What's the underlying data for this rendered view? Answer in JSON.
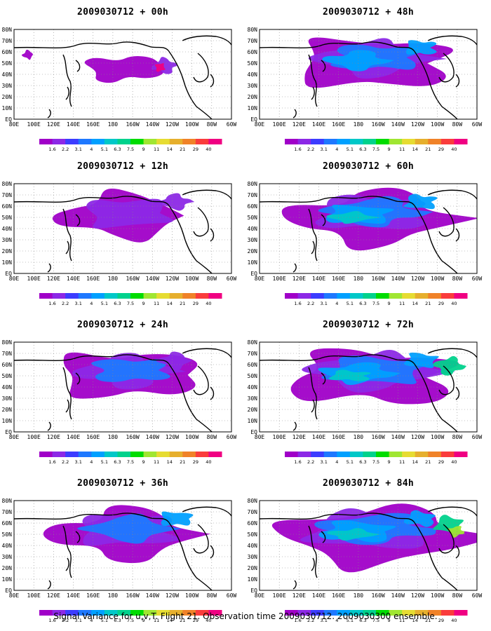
{
  "caption": "Signal Variance for u,v,T. Flight 21. Observation time 2009030712. 2009030300 ensemble.",
  "lat_labels": [
    "80N",
    "70N",
    "60N",
    "50N",
    "40N",
    "30N",
    "20N",
    "10N",
    "EQ"
  ],
  "lon_labels": [
    "80E",
    "100E",
    "120E",
    "140E",
    "160E",
    "180",
    "160W",
    "140W",
    "120W",
    "100W",
    "80W",
    "60W"
  ],
  "colorbar": {
    "labels": [
      "1.6",
      "2.2",
      "3.1",
      "4",
      "5.1",
      "6.3",
      "7.5",
      "9",
      "11",
      "14",
      "21",
      "29",
      "40"
    ],
    "colors": [
      "#a000c8",
      "#8c28e6",
      "#3c3cff",
      "#1e78ff",
      "#00a0ff",
      "#00c8c8",
      "#00d28c",
      "#00dc00",
      "#a0e632",
      "#e6dc32",
      "#e6af2d",
      "#f08228",
      "#fa3c3c",
      "#f00082"
    ]
  },
  "chart_data": [
    {
      "type": "heatmap",
      "title": "2009030712 + 00h",
      "column": "left",
      "row": 0,
      "intensity": 0.0
    },
    {
      "type": "heatmap",
      "title": "2009030712 + 12h",
      "column": "left",
      "row": 1,
      "intensity": 0.2
    },
    {
      "type": "heatmap",
      "title": "2009030712 + 24h",
      "column": "left",
      "row": 2,
      "intensity": 0.35
    },
    {
      "type": "heatmap",
      "title": "2009030712 + 36h",
      "column": "left",
      "row": 3,
      "intensity": 0.45
    },
    {
      "type": "heatmap",
      "title": "2009030712 + 48h",
      "column": "right",
      "row": 0,
      "intensity": 0.55
    },
    {
      "type": "heatmap",
      "title": "2009030712 + 60h",
      "column": "right",
      "row": 1,
      "intensity": 0.65
    },
    {
      "type": "heatmap",
      "title": "2009030712 + 72h",
      "column": "right",
      "row": 2,
      "intensity": 0.75
    },
    {
      "type": "heatmap",
      "title": "2009030712 + 84h",
      "column": "right",
      "row": 3,
      "intensity": 0.9
    }
  ]
}
